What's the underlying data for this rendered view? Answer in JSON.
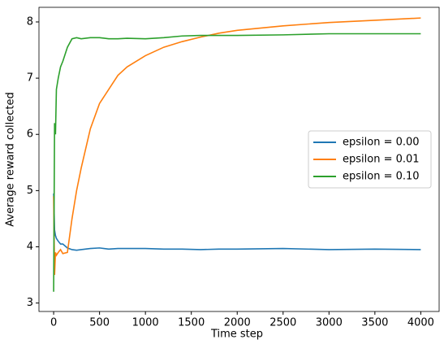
{
  "chart_data": {
    "type": "line",
    "x_label": "Time step",
    "y_label": "Average reward collected",
    "x": [
      0,
      10,
      20,
      30,
      50,
      75,
      100,
      150,
      200,
      250,
      300,
      400,
      500,
      600,
      700,
      800,
      1000,
      1200,
      1400,
      1600,
      1800,
      2000,
      2500,
      3000,
      3500,
      4000
    ],
    "series": [
      {
        "name": "epsilon = 0.00",
        "color": "#1f77b4",
        "values": [
          4.95,
          4.3,
          4.2,
          4.15,
          4.1,
          4.05,
          4.05,
          3.98,
          3.95,
          3.94,
          3.95,
          3.97,
          3.98,
          3.96,
          3.97,
          3.97,
          3.97,
          3.96,
          3.96,
          3.95,
          3.96,
          3.96,
          3.97,
          3.95,
          3.96,
          3.95
        ]
      },
      {
        "name": "epsilon = 0.01",
        "color": "#ff7f0e",
        "values": [
          4.9,
          3.5,
          3.9,
          3.85,
          3.9,
          3.95,
          3.88,
          3.9,
          4.5,
          5.0,
          5.4,
          6.1,
          6.55,
          6.8,
          7.05,
          7.2,
          7.4,
          7.55,
          7.65,
          7.73,
          7.8,
          7.85,
          7.93,
          7.99,
          8.03,
          8.07
        ]
      },
      {
        "name": "epsilon = 0.10",
        "color": "#2ca02c",
        "values": [
          3.2,
          6.2,
          6.0,
          6.8,
          7.0,
          7.2,
          7.3,
          7.55,
          7.7,
          7.72,
          7.7,
          7.72,
          7.72,
          7.7,
          7.7,
          7.71,
          7.7,
          7.72,
          7.75,
          7.76,
          7.76,
          7.76,
          7.77,
          7.79,
          7.79,
          7.79
        ]
      }
    ],
    "xlim": [
      -160,
      4200
    ],
    "ylim": [
      2.85,
      8.26
    ],
    "xticks": [
      0,
      500,
      1000,
      1500,
      2000,
      2500,
      3000,
      3500,
      4000
    ],
    "yticks": [
      3,
      4,
      5,
      6,
      7,
      8
    ],
    "legend": "center right"
  }
}
